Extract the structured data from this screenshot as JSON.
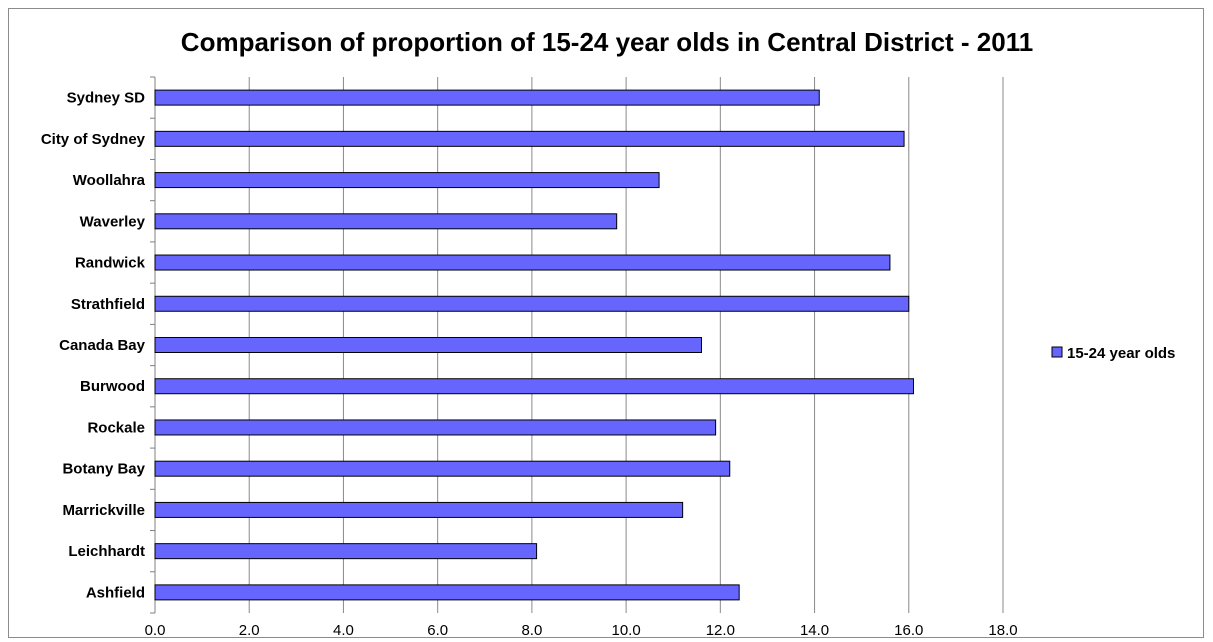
{
  "chart_data": {
    "type": "bar",
    "orientation": "horizontal",
    "title": "Comparison of proportion of 15-24 year olds in Central District - 2011",
    "categories": [
      "Sydney SD",
      "City of Sydney",
      "Woollahra",
      "Waverley",
      "Randwick",
      "Strathfield",
      "Canada Bay",
      "Burwood",
      "Rockale",
      "Botany Bay",
      "Marrickville",
      "Leichhardt",
      "Ashfield"
    ],
    "series": [
      {
        "name": "15-24 year olds",
        "color": "#6666ff",
        "values": [
          14.1,
          15.9,
          10.7,
          9.8,
          15.6,
          16.0,
          11.6,
          16.1,
          11.9,
          12.2,
          11.2,
          8.1,
          12.4
        ]
      }
    ],
    "xlim": [
      0,
      18
    ],
    "xticks": [
      0,
      2,
      4,
      6,
      8,
      10,
      12,
      14,
      16,
      18
    ],
    "xtick_labels": [
      "0.0",
      "2.0",
      "4.0",
      "6.0",
      "8.0",
      "10.0",
      "12.0",
      "14.0",
      "16.0",
      "18.0"
    ],
    "grid": true,
    "legend_position": "right"
  }
}
